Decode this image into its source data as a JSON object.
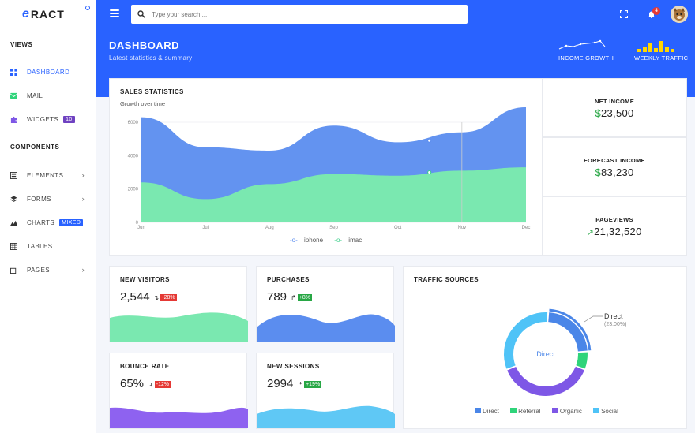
{
  "brand": {
    "name": "RACT",
    "logo_letter": "e"
  },
  "sidebar": {
    "views_title": "VIEWS",
    "components_title": "COMPONENTS",
    "items": [
      {
        "label": "DASHBOARD",
        "icon": "dashboard-icon"
      },
      {
        "label": "MAIL",
        "icon": "mail-icon"
      },
      {
        "label": "WIDGETS",
        "icon": "puzzle-icon",
        "badge": "10"
      },
      {
        "label": "ELEMENTS",
        "icon": "calculator-icon"
      },
      {
        "label": "FORMS",
        "icon": "layers-icon"
      },
      {
        "label": "CHARTS",
        "icon": "chart-icon",
        "badge": "MIXED"
      },
      {
        "label": "TABLES",
        "icon": "table-icon"
      },
      {
        "label": "PAGES",
        "icon": "pages-icon"
      }
    ]
  },
  "topbar": {
    "search_placeholder": "Type your search ...",
    "notifications": "4"
  },
  "header": {
    "title": "DASHBOARD",
    "subtitle": "Latest statistics & summary",
    "income_growth_label": "INCOME GROWTH",
    "weekly_traffic_label": "WEEKLY TRAFFIC"
  },
  "sales": {
    "title": "SALES STATISTICS",
    "subtitle": "Growth over time"
  },
  "stats": {
    "net_income": {
      "label": "NET INCOME",
      "currency": "$",
      "value": "23,500"
    },
    "forecast_income": {
      "label": "FORECAST INCOME",
      "currency": "$",
      "value": "83,230"
    },
    "pageviews": {
      "label": "PAGEVIEWS",
      "value": "21,32,520"
    }
  },
  "mini": {
    "new_visitors": {
      "label": "NEW VISITORS",
      "value": "2,544",
      "change": "-28%"
    },
    "purchases": {
      "label": "PURCHASES",
      "value": "789",
      "change": "+8%"
    },
    "bounce_rate": {
      "label": "BOUNCE RATE",
      "value": "65%",
      "change": "-12%"
    },
    "new_sessions": {
      "label": "NEW SESSIONS",
      "value": "2994",
      "change": "+19%"
    }
  },
  "traffic": {
    "title": "TRAFFIC SOURCES",
    "center_label": "Direct",
    "callout_label": "Direct",
    "callout_value": "(23.00%)"
  },
  "chart_data": [
    {
      "type": "area",
      "categories": [
        "Jun",
        "Jul",
        "Aug",
        "Sep",
        "Oct",
        "Nov",
        "Dec"
      ],
      "ylim": [
        0,
        6000
      ],
      "yticks": [
        0,
        2000,
        4000,
        6000
      ],
      "series": [
        {
          "name": "iphone",
          "color": "#5b8def",
          "values": [
            6300,
            4500,
            4300,
            5800,
            4800,
            5400,
            6900
          ]
        },
        {
          "name": "imac",
          "color": "#7ae8b0",
          "values": [
            2400,
            1400,
            2300,
            2900,
            2800,
            3100,
            3300
          ]
        }
      ]
    },
    {
      "type": "pie",
      "categories": [
        "Direct",
        "Referral",
        "Organic",
        "Social"
      ],
      "values": [
        23,
        7,
        38,
        32
      ],
      "colors": [
        "#4a86e8",
        "#2fd47a",
        "#7e57e6",
        "#4fc3f7"
      ]
    }
  ],
  "colors": {
    "primary": "#2962ff",
    "purple": "#6f42c1",
    "green": "#28a745",
    "red": "#e53935"
  }
}
